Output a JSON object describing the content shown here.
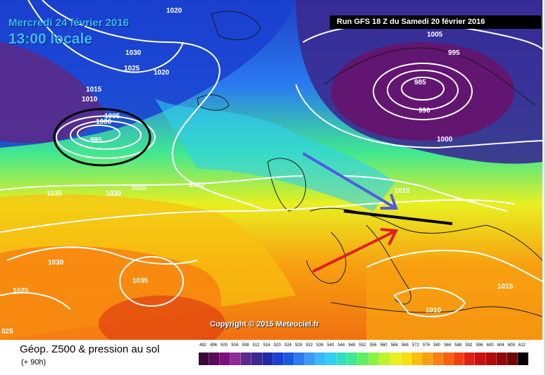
{
  "header": {
    "date_line": "Mercredi 24 février 2016",
    "time_line": "13:00 locale",
    "run_info": "Run GFS 18 Z du Samedi 20 février 2016"
  },
  "copyright": "Copyright © 2015 Meteociel.fr",
  "footer": {
    "title": "Géop. Z500 & pression au sol",
    "subtitle": "(+ 90h)"
  },
  "isobar_labels": [
    "1020",
    "1030",
    "1025",
    "1020",
    "1015",
    "1010",
    "1005",
    "1000",
    "995",
    "1035",
    "1030",
    "1025",
    "1020",
    "1005",
    "995",
    "985",
    "990",
    "1000",
    "1015",
    "1030",
    "1035",
    "1025",
    "1010",
    "1015",
    "025"
  ],
  "legend": {
    "scale_labels": [
      "492",
      "496",
      "500",
      "504",
      "508",
      "512",
      "516",
      "520",
      "524",
      "528",
      "532",
      "536",
      "540",
      "544",
      "548",
      "552",
      "556",
      "560",
      "564",
      "568",
      "572",
      "576",
      "580",
      "584",
      "588",
      "592",
      "596",
      "600",
      "604",
      "608",
      "612"
    ],
    "scale_colors": [
      "#3a0a3a",
      "#5a0a5a",
      "#7a107a",
      "#8e2a9a",
      "#5a2a8a",
      "#3a2a90",
      "#1e2aa8",
      "#1a40d0",
      "#1a5ae0",
      "#2a7af0",
      "#3a9af8",
      "#3ab8ff",
      "#30d0f0",
      "#30e0c0",
      "#40e890",
      "#60ee60",
      "#90f040",
      "#c0f030",
      "#e8f020",
      "#f8e010",
      "#f8c010",
      "#f8a010",
      "#f88010",
      "#f86010",
      "#f04010",
      "#e02010",
      "#c81010",
      "#b00a0a",
      "#900808",
      "#700606",
      "#000000"
    ]
  }
}
